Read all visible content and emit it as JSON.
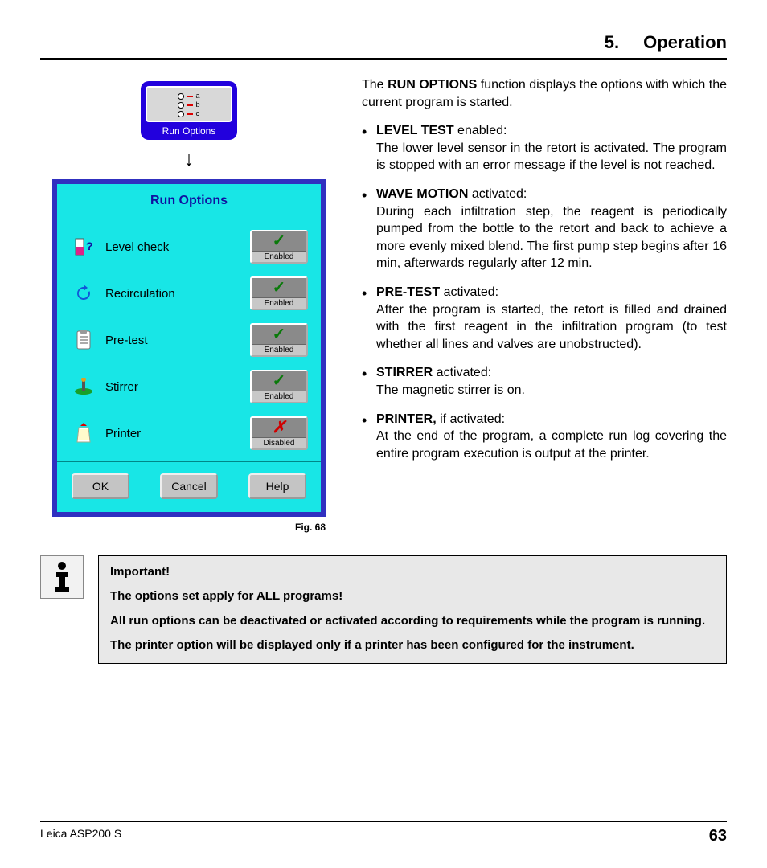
{
  "header": {
    "chapter_num": "5.",
    "chapter_title": "Operation"
  },
  "runopt_button": {
    "label": "Run Options",
    "rows": [
      "a",
      "b",
      "c"
    ]
  },
  "arrow": "↓",
  "dialog": {
    "title": "Run Options",
    "options": [
      {
        "icon": "level-icon",
        "label": "Level check",
        "state": "Enabled",
        "enabled": true
      },
      {
        "icon": "recirc-icon",
        "label": "Recirculation",
        "state": "Enabled",
        "enabled": true
      },
      {
        "icon": "pretest-icon",
        "label": "Pre-test",
        "state": "Enabled",
        "enabled": true
      },
      {
        "icon": "stirrer-icon",
        "label": "Stirrer",
        "state": "Enabled",
        "enabled": true
      },
      {
        "icon": "printer-icon",
        "label": "Printer",
        "state": "Disabled",
        "enabled": false
      }
    ],
    "actions": {
      "ok": "OK",
      "cancel": "Cancel",
      "help": "Help"
    },
    "caption": "Fig. 68"
  },
  "body": {
    "intro_pre": "The ",
    "intro_bold": "RUN OPTIONS",
    "intro_post": " function displays the options with which the current program is started.",
    "items": [
      {
        "term": "LEVEL TEST",
        "suffix": " enabled:",
        "desc": "The lower level sensor in the retort is acti­vated. The program is stopped with an error message if the level is not reached."
      },
      {
        "term": "WAVE MOTION",
        "suffix": " activated:",
        "desc": "During each infiltration step, the reagent is periodically pumped from the bottle to the re­tort and back to achieve a more evenly mixed blend. The first pump step begins after 16 min, afterwards regularly after 12 min."
      },
      {
        "term": "PRE-TEST",
        "suffix": " activated:",
        "desc": "After the program is started, the retort is filled and drained with the first reagent in the infil­tration program (to test whether all lines and valves are unobstructed)."
      },
      {
        "term": "STIRRER",
        "suffix": " activated:",
        "desc": "The magnetic stirrer is on."
      },
      {
        "term": "PRINTER,",
        "suffix": " if activated:",
        "desc": "At the end of the program, a complete run log covering the entire program execution is output at the printer."
      }
    ]
  },
  "important": {
    "title": "Important!",
    "line1": "The options set apply for ALL programs!",
    "line2": "All run options can be deactivated or activated according to requirements while the program is running.",
    "line3": "The printer option will be displayed only if a printer has been configured for the instrument."
  },
  "footer": {
    "product": "Leica ASP200 S",
    "page": "63"
  }
}
